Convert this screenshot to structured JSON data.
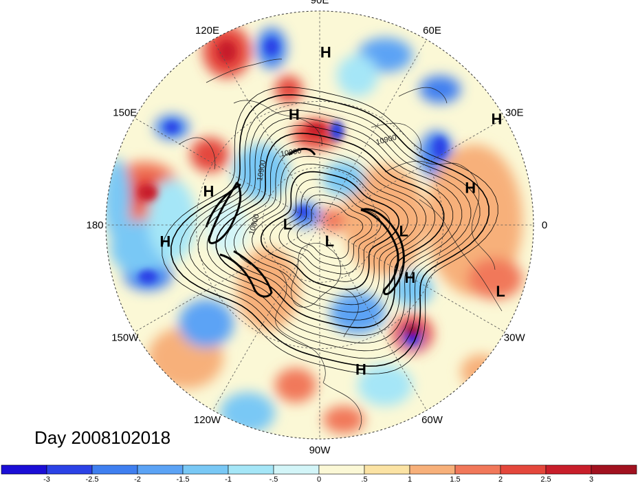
{
  "map": {
    "projection": "north-polar-stereographic",
    "longitude_labels": [
      {
        "text": "90E",
        "lon": 90
      },
      {
        "text": "60E",
        "lon": 60
      },
      {
        "text": "30E",
        "lon": 30
      },
      {
        "text": "0",
        "lon": 0
      },
      {
        "text": "30W",
        "lon": -30
      },
      {
        "text": "60W",
        "lon": -60
      },
      {
        "text": "90W",
        "lon": -90
      },
      {
        "text": "120W",
        "lon": -120
      },
      {
        "text": "150W",
        "lon": -150
      },
      {
        "text": "180",
        "lon": 180
      },
      {
        "text": "150E",
        "lon": 150
      },
      {
        "text": "120E",
        "lon": 120
      }
    ],
    "pressure_centers": [
      {
        "text": "H",
        "lon": 88,
        "lat": 12
      },
      {
        "text": "H",
        "lon": 103,
        "lat": 34
      },
      {
        "text": "H",
        "lon": 31,
        "lat": 2
      },
      {
        "text": "H",
        "lon": 14,
        "lat": 18
      },
      {
        "text": "H",
        "lon": 163,
        "lat": 33
      },
      {
        "text": "H",
        "lon": -174,
        "lat": 18
      },
      {
        "text": "L",
        "lon": 178,
        "lat": 73
      },
      {
        "text": "L",
        "lon": -58,
        "lat": 80
      },
      {
        "text": "L",
        "lon": -4,
        "lat": 47
      },
      {
        "text": "L",
        "lon": -20,
        "lat": 6
      },
      {
        "text": "H",
        "lon": -30,
        "lat": 38
      },
      {
        "text": "H",
        "lon": -74,
        "lat": 20
      }
    ],
    "contour_labels": [
      {
        "text": "10800",
        "lon": 112,
        "lat": 51,
        "rot": -10
      },
      {
        "text": "10900",
        "lon": 136,
        "lat": 50,
        "rot": -80
      },
      {
        "text": "10900",
        "lon": 51,
        "lat": 37,
        "rot": -15
      },
      {
        "text": "10800",
        "lon": 180,
        "lat": 57,
        "rot": -75
      }
    ]
  },
  "footer": {
    "day_label": "Day 2008102018"
  },
  "colorbar": {
    "colors": [
      "#1b0ed6",
      "#2b42e6",
      "#3f7ff0",
      "#5ba3f5",
      "#79c8f5",
      "#a5e6f7",
      "#d3f5f8",
      "#fbf8d6",
      "#fbe3a4",
      "#f7b07a",
      "#f1785a",
      "#e4473c",
      "#c81e2a",
      "#a1111f"
    ],
    "tick_labels": [
      "-3",
      "-2.5",
      "-2",
      "-1.5",
      "-1",
      "-.5",
      "0",
      ".5",
      "1",
      "1.5",
      "2",
      "2.5",
      "3"
    ]
  }
}
